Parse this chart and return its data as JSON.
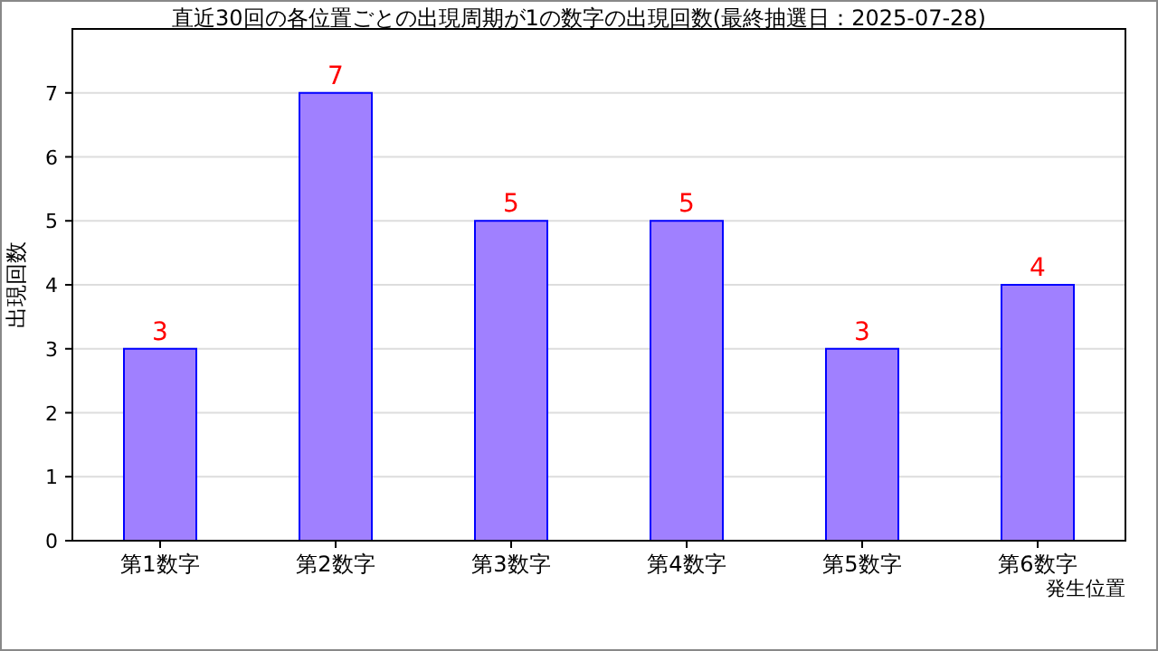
{
  "chart_data": {
    "type": "bar",
    "title": "直近30回の各位置ごとの出現周期が1の数字の出現回数(最終抽選日：2025-07-28)",
    "xlabel": "発生位置",
    "ylabel": "出現回数",
    "categories": [
      "第1数字",
      "第2数字",
      "第3数字",
      "第4数字",
      "第5数字",
      "第6数字"
    ],
    "values": [
      3,
      7,
      5,
      5,
      3,
      4
    ],
    "color": "#a080ff",
    "ylim": [
      0,
      8
    ],
    "yticks": [
      0,
      1,
      2,
      3,
      4,
      5,
      6,
      7
    ],
    "grid": "y",
    "data_labels": true
  }
}
